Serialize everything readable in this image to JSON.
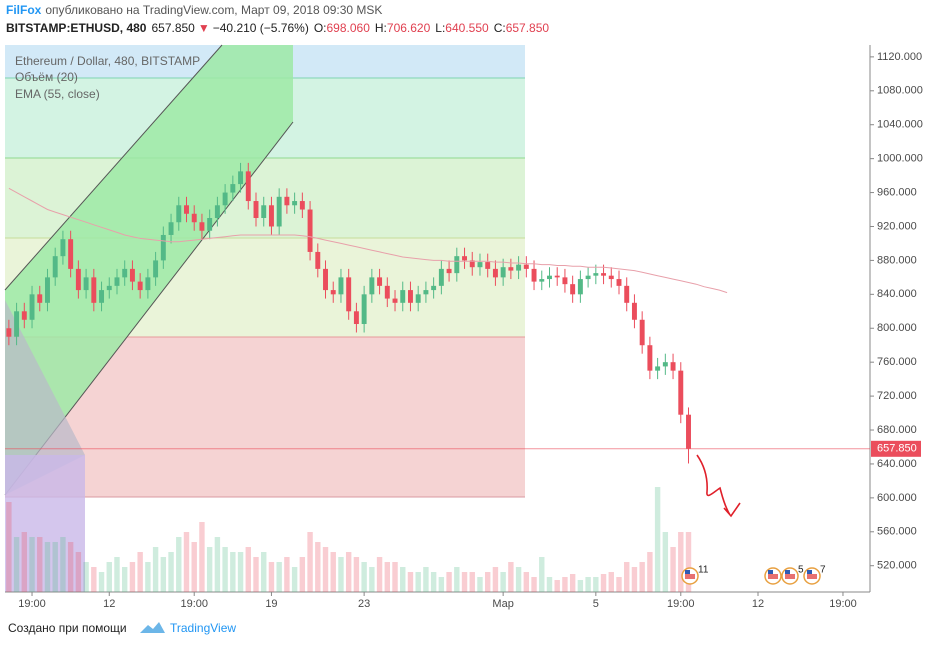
{
  "header": {
    "author": "FilFox",
    "published": "опубликовано на TradingView.com, Март 09, 2018 09:30 MSK",
    "symbol": "BITSTAMP:ETHUSD, 480",
    "last": "657.850",
    "arrow": "▼",
    "change": "−40.210 (−5.76%)",
    "ohlc": [
      {
        "label": "O:",
        "value": "698.060"
      },
      {
        "label": "H:",
        "value": "706.620"
      },
      {
        "label": "L:",
        "value": "640.550"
      },
      {
        "label": "C:",
        "value": "657.850"
      }
    ]
  },
  "footer": {
    "text": "Создано при помощи",
    "brand": "TradingView"
  },
  "chart_data": {
    "type": "candlestick",
    "legend": [
      "Ethereum / Dollar, 480, BITSTAMP",
      "Объём (20)",
      "EMA (55, close)"
    ],
    "price_label": "657.850",
    "events": [
      "11",
      "5",
      "7"
    ],
    "up_color": "#53b987",
    "down_color": "#eb4d5c",
    "ema_color": "#e8a0aa",
    "ylim": [
      489,
      1134
    ],
    "yticks": [
      {
        "value": 520,
        "label": "520.000"
      },
      {
        "value": 560,
        "label": "560.000"
      },
      {
        "value": 600,
        "label": "600.000"
      },
      {
        "value": 640,
        "label": "640.000"
      },
      {
        "value": 680,
        "label": "680.000"
      },
      {
        "value": 720,
        "label": "720.000"
      },
      {
        "value": 760,
        "label": "760.000"
      },
      {
        "value": 800,
        "label": "800.000"
      },
      {
        "value": 840,
        "label": "840.000"
      },
      {
        "value": 880,
        "label": "880.000"
      },
      {
        "value": 920,
        "label": "920.000"
      },
      {
        "value": 960,
        "label": "960.000"
      },
      {
        "value": 1000,
        "label": "1000.000"
      },
      {
        "value": 1040,
        "label": "1040.000"
      },
      {
        "value": 1080,
        "label": "1080.000"
      },
      {
        "value": 1120,
        "label": "1120.000"
      }
    ],
    "vlim": [
      0,
      100
    ],
    "categories": [
      null,
      null,
      null,
      "19:00",
      null,
      null,
      null,
      null,
      null,
      null,
      null,
      null,
      null,
      "12",
      null,
      null,
      null,
      null,
      null,
      null,
      null,
      null,
      null,
      null,
      "19:00",
      null,
      null,
      null,
      null,
      null,
      null,
      null,
      null,
      null,
      "19",
      null,
      null,
      null,
      null,
      null,
      null,
      null,
      null,
      null,
      null,
      null,
      "23",
      null,
      null,
      null,
      null,
      null,
      null,
      null,
      null,
      null,
      null,
      null,
      null,
      null,
      null,
      null,
      null,
      null,
      "Мар",
      null,
      null,
      null,
      null,
      null,
      null,
      null,
      null,
      null,
      null,
      null,
      "5",
      null,
      null,
      null,
      null,
      null,
      null,
      null,
      null,
      null,
      null,
      "19:00",
      null,
      null,
      null,
      null,
      null,
      null,
      null,
      null,
      null,
      "12",
      null,
      null,
      null,
      null,
      null,
      null,
      null,
      null,
      null,
      null,
      "19:00",
      null,
      null,
      null
    ],
    "open": [
      800,
      790,
      820,
      810,
      840,
      830,
      860,
      885,
      905,
      870,
      845,
      860,
      830,
      845,
      850,
      860,
      870,
      855,
      845,
      860,
      880,
      910,
      925,
      945,
      935,
      925,
      915,
      930,
      945,
      960,
      970,
      985,
      950,
      930,
      945,
      920,
      955,
      945,
      950,
      940,
      890,
      870,
      845,
      840,
      860,
      820,
      805,
      840,
      860,
      850,
      835,
      830,
      845,
      830,
      840,
      845,
      850,
      870,
      865,
      885,
      880,
      872,
      878,
      870,
      860,
      872,
      868,
      875,
      870,
      855,
      858,
      862,
      860,
      852,
      840,
      858,
      862,
      865,
      862,
      858,
      850,
      830,
      810,
      780,
      750,
      755,
      760,
      750,
      698.06,
      null,
      null,
      null,
      null,
      null,
      null,
      null,
      null,
      null,
      null,
      null,
      null,
      null,
      null,
      null,
      null,
      null,
      null,
      null,
      null,
      null,
      null,
      null
    ],
    "high": [
      810,
      830,
      830,
      850,
      850,
      870,
      895,
      915,
      915,
      880,
      870,
      870,
      855,
      860,
      870,
      880,
      880,
      865,
      870,
      890,
      920,
      935,
      955,
      955,
      945,
      935,
      940,
      955,
      970,
      980,
      995,
      995,
      960,
      955,
      955,
      965,
      965,
      960,
      960,
      950,
      900,
      880,
      855,
      870,
      870,
      830,
      850,
      870,
      870,
      860,
      845,
      855,
      855,
      850,
      855,
      860,
      880,
      880,
      895,
      895,
      890,
      888,
      888,
      880,
      882,
      882,
      885,
      885,
      880,
      868,
      872,
      872,
      870,
      862,
      868,
      872,
      875,
      875,
      872,
      868,
      860,
      840,
      820,
      790,
      765,
      770,
      770,
      760,
      706.62,
      null,
      null,
      null,
      null,
      null,
      null,
      null,
      null,
      null,
      null,
      null,
      null,
      null,
      null,
      null,
      null,
      null,
      null,
      null,
      null,
      null,
      null,
      null
    ],
    "low": [
      780,
      780,
      800,
      800,
      820,
      820,
      850,
      875,
      860,
      835,
      835,
      820,
      820,
      835,
      840,
      850,
      845,
      835,
      835,
      850,
      870,
      900,
      915,
      925,
      915,
      905,
      905,
      920,
      935,
      950,
      960,
      940,
      920,
      920,
      910,
      910,
      935,
      935,
      930,
      880,
      860,
      835,
      830,
      830,
      810,
      795,
      795,
      830,
      840,
      825,
      820,
      820,
      820,
      820,
      830,
      835,
      840,
      855,
      855,
      870,
      862,
      862,
      860,
      850,
      850,
      858,
      858,
      860,
      845,
      845,
      848,
      850,
      842,
      830,
      830,
      848,
      852,
      852,
      848,
      840,
      820,
      800,
      770,
      740,
      740,
      745,
      740,
      688.06,
      640.55,
      null,
      null,
      null,
      null,
      null,
      null,
      null,
      null,
      null,
      null,
      null,
      null,
      null,
      null,
      null,
      null,
      null,
      null,
      null,
      null,
      null,
      null,
      null
    ],
    "close": [
      790,
      820,
      810,
      840,
      830,
      860,
      885,
      905,
      870,
      845,
      860,
      830,
      845,
      850,
      860,
      870,
      855,
      845,
      860,
      880,
      910,
      925,
      945,
      935,
      925,
      915,
      930,
      945,
      960,
      970,
      985,
      950,
      930,
      945,
      920,
      955,
      945,
      950,
      940,
      890,
      870,
      845,
      840,
      860,
      820,
      805,
      840,
      860,
      850,
      835,
      830,
      845,
      830,
      840,
      845,
      850,
      870,
      865,
      885,
      880,
      872,
      878,
      870,
      860,
      872,
      868,
      875,
      870,
      855,
      858,
      862,
      860,
      852,
      840,
      858,
      862,
      865,
      862,
      858,
      850,
      830,
      810,
      780,
      750,
      755,
      760,
      750,
      698.06,
      657.85,
      null,
      null,
      null,
      null,
      null,
      null,
      null,
      null,
      null,
      null,
      null,
      null,
      null,
      null,
      null,
      null,
      null,
      null,
      null,
      null,
      null,
      null,
      null
    ],
    "volume": [
      90,
      55,
      60,
      55,
      55,
      50,
      50,
      55,
      50,
      40,
      30,
      25,
      20,
      30,
      35,
      25,
      30,
      40,
      30,
      45,
      35,
      40,
      55,
      60,
      50,
      70,
      45,
      55,
      45,
      40,
      40,
      45,
      35,
      40,
      30,
      30,
      35,
      25,
      35,
      60,
      50,
      45,
      40,
      35,
      40,
      35,
      30,
      25,
      35,
      30,
      30,
      25,
      20,
      20,
      25,
      20,
      15,
      20,
      25,
      20,
      20,
      15,
      20,
      25,
      20,
      30,
      25,
      20,
      15,
      35,
      15,
      12,
      15,
      18,
      12,
      15,
      15,
      18,
      20,
      15,
      30,
      25,
      30,
      40,
      105,
      60,
      45,
      60,
      60,
      null,
      null,
      null,
      null,
      null,
      null,
      null,
      null,
      null,
      null,
      null,
      null,
      null,
      null,
      null,
      null,
      null,
      null,
      null,
      null,
      null,
      null,
      null
    ],
    "ema": [
      965,
      960,
      955,
      950,
      945,
      940,
      937,
      934,
      931,
      928,
      925,
      922,
      919,
      916,
      913,
      910,
      908,
      906,
      905,
      904,
      903,
      902,
      902,
      903,
      904,
      905,
      906,
      907,
      908,
      909,
      910,
      910,
      910,
      910,
      910,
      910,
      910,
      910,
      909,
      908,
      906,
      904,
      902,
      900,
      898,
      896,
      894,
      892,
      890,
      888,
      886,
      884,
      883,
      882,
      881,
      880,
      880,
      879,
      879,
      879,
      879,
      879,
      879,
      878,
      878,
      877,
      877,
      876,
      876,
      875,
      875,
      874,
      874,
      873,
      873,
      872,
      872,
      872,
      871,
      870,
      869,
      868,
      866,
      864,
      862,
      860,
      858,
      856,
      854,
      852,
      849,
      847,
      845,
      842,
      null,
      null,
      null,
      null,
      null,
      null,
      null,
      null,
      null,
      null,
      null,
      null,
      null,
      null,
      null,
      null,
      null,
      null
    ]
  }
}
